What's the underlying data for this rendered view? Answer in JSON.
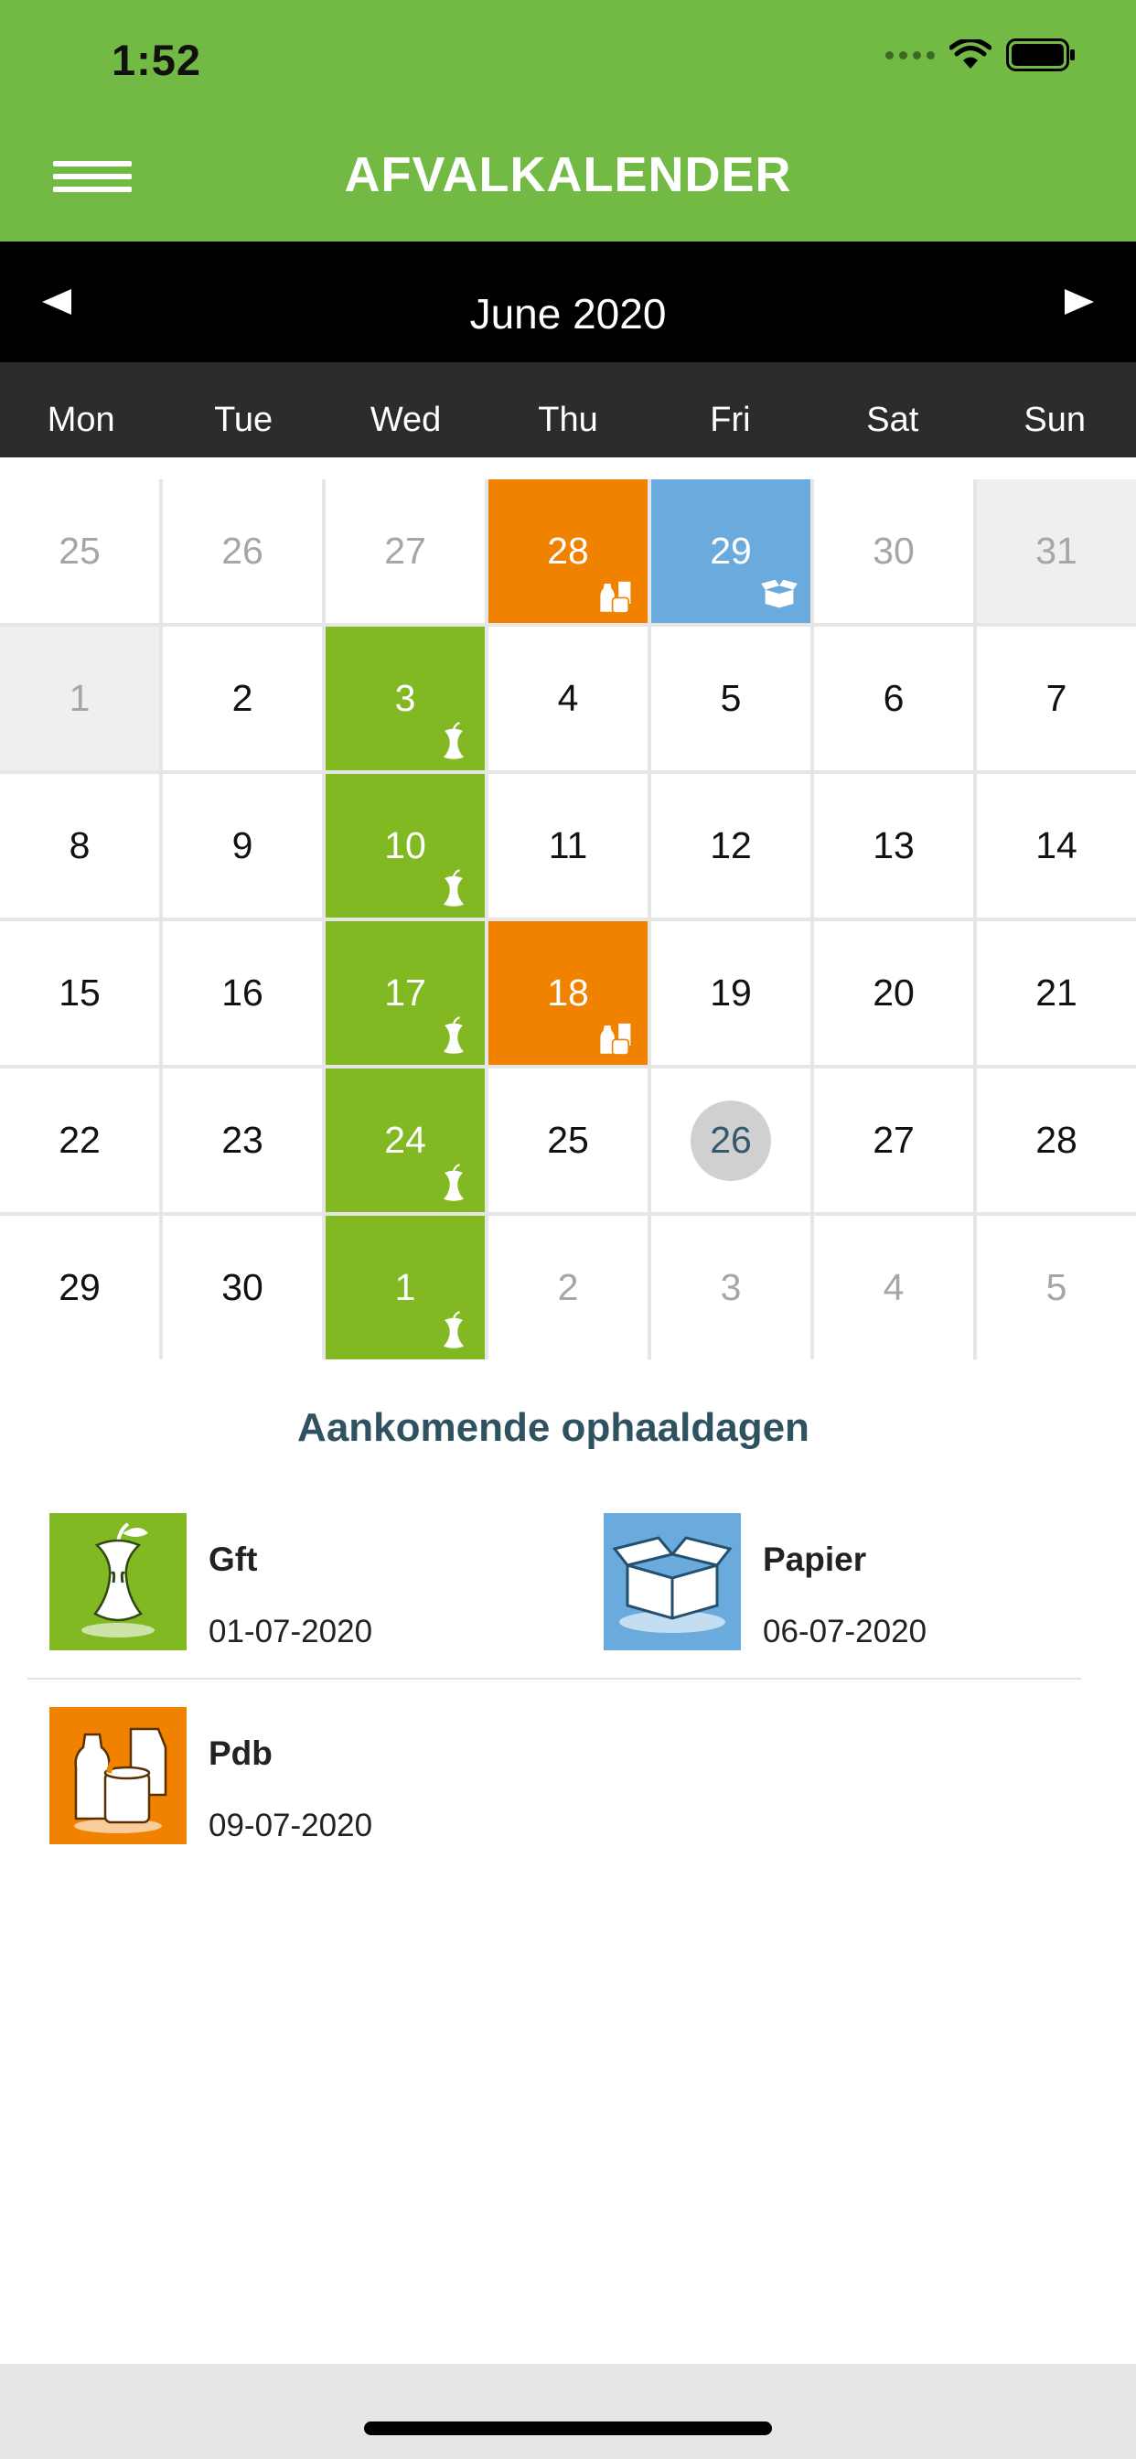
{
  "status_bar": {
    "time": "1:52"
  },
  "header": {
    "title": "AFVALKALENDER",
    "menu_icon": "hamburger-icon"
  },
  "calendar_nav": {
    "month_label": "June 2020",
    "prev_icon": "triangle-left-icon",
    "next_icon": "triangle-right-icon"
  },
  "weekdays": [
    "Mon",
    "Tue",
    "Wed",
    "Thu",
    "Fri",
    "Sat",
    "Sun"
  ],
  "calendar": {
    "weeks": [
      [
        {
          "day": "25",
          "state": "outside"
        },
        {
          "day": "26",
          "state": "outside"
        },
        {
          "day": "27",
          "state": "outside"
        },
        {
          "day": "28",
          "state": "pdb"
        },
        {
          "day": "29",
          "state": "papier"
        },
        {
          "day": "30",
          "state": "outside"
        },
        {
          "day": "31",
          "state": "grey"
        }
      ],
      [
        {
          "day": "1",
          "state": "grey"
        },
        {
          "day": "2",
          "state": "normal"
        },
        {
          "day": "3",
          "state": "gft"
        },
        {
          "day": "4",
          "state": "normal"
        },
        {
          "day": "5",
          "state": "normal"
        },
        {
          "day": "6",
          "state": "normal"
        },
        {
          "day": "7",
          "state": "normal"
        }
      ],
      [
        {
          "day": "8",
          "state": "normal"
        },
        {
          "day": "9",
          "state": "normal"
        },
        {
          "day": "10",
          "state": "gft"
        },
        {
          "day": "11",
          "state": "normal"
        },
        {
          "day": "12",
          "state": "normal"
        },
        {
          "day": "13",
          "state": "normal"
        },
        {
          "day": "14",
          "state": "normal"
        }
      ],
      [
        {
          "day": "15",
          "state": "normal"
        },
        {
          "day": "16",
          "state": "normal"
        },
        {
          "day": "17",
          "state": "gft"
        },
        {
          "day": "18",
          "state": "pdb"
        },
        {
          "day": "19",
          "state": "normal"
        },
        {
          "day": "20",
          "state": "normal"
        },
        {
          "day": "21",
          "state": "normal"
        }
      ],
      [
        {
          "day": "22",
          "state": "normal"
        },
        {
          "day": "23",
          "state": "normal"
        },
        {
          "day": "24",
          "state": "gft"
        },
        {
          "day": "25",
          "state": "normal"
        },
        {
          "day": "26",
          "state": "today"
        },
        {
          "day": "27",
          "state": "normal"
        },
        {
          "day": "28",
          "state": "normal"
        }
      ],
      [
        {
          "day": "29",
          "state": "normal"
        },
        {
          "day": "30",
          "state": "normal"
        },
        {
          "day": "1",
          "state": "gft"
        },
        {
          "day": "2",
          "state": "outside"
        },
        {
          "day": "3",
          "state": "outside"
        },
        {
          "day": "4",
          "state": "outside"
        },
        {
          "day": "5",
          "state": "outside"
        }
      ]
    ]
  },
  "upcoming": {
    "title": "Aankomende ophaaldagen",
    "items": [
      {
        "name": "Gft",
        "date": "01-07-2020",
        "type": "gft",
        "icon": "apple-core-icon"
      },
      {
        "name": "Papier",
        "date": "06-07-2020",
        "type": "papier",
        "icon": "paper-box-icon"
      },
      {
        "name": "Pdb",
        "date": "09-07-2020",
        "type": "pdb",
        "icon": "bottles-cans-icon"
      }
    ]
  },
  "colors": {
    "header_green": "#72ba43",
    "gft": "#82b923",
    "pdb": "#f08200",
    "papier": "#6aaadc",
    "today_circle": "#d0d0d0",
    "section_title": "#2f5261"
  }
}
